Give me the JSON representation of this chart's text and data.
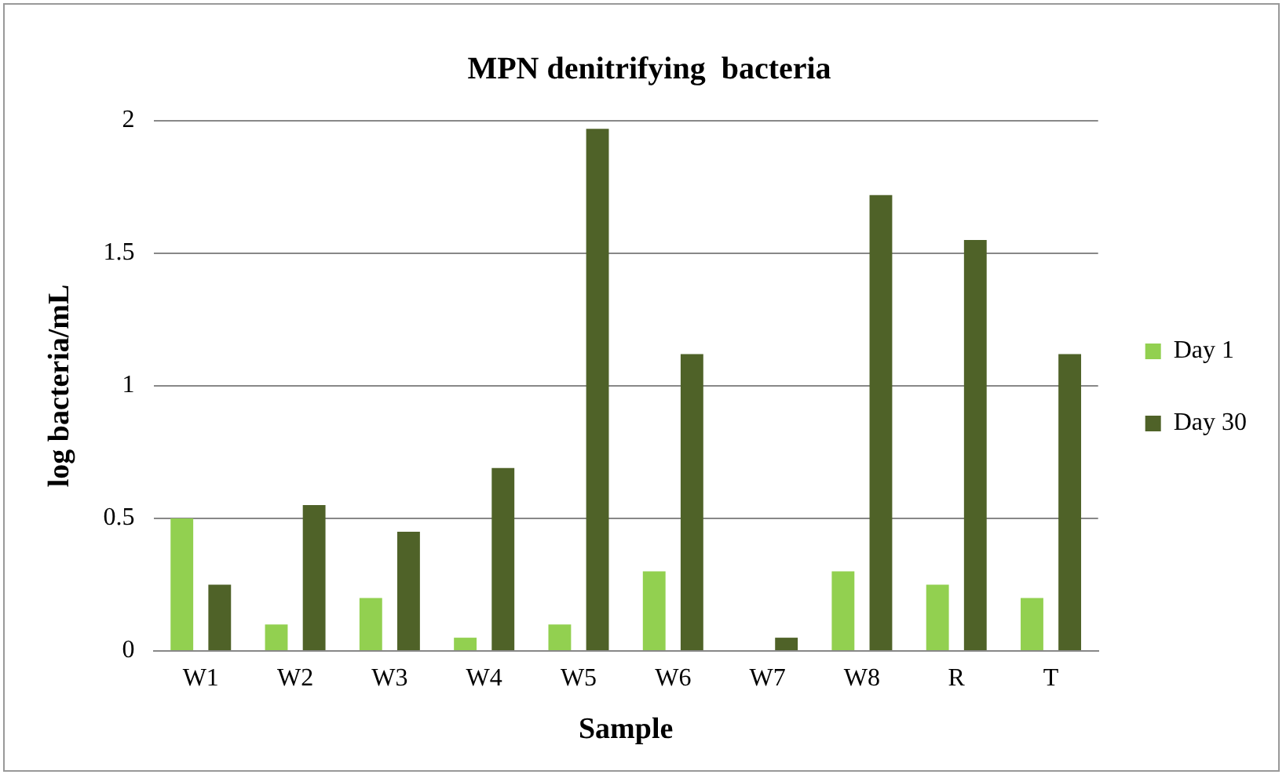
{
  "chart_data": {
    "type": "bar",
    "title": "MPN denitrifying  bacteria",
    "xlabel": "Sample",
    "ylabel": "log bacteria/mL",
    "categories": [
      "W1",
      "W2",
      "W3",
      "W4",
      "W5",
      "W6",
      "W7",
      "W8",
      "R",
      "T"
    ],
    "series": [
      {
        "name": "Day 1",
        "color": "#92d050",
        "values": [
          0.5,
          0.1,
          0.2,
          0.05,
          0.1,
          0.3,
          0,
          0.3,
          0.25,
          0.2
        ]
      },
      {
        "name": "Day 30",
        "color": "#4f6228",
        "values": [
          0.25,
          0.55,
          0.45,
          0.69,
          1.97,
          1.12,
          0.05,
          1.72,
          1.55,
          1.12
        ]
      }
    ],
    "ylim": [
      0,
      2
    ],
    "yticks": [
      0,
      0.5,
      1,
      1.5,
      2
    ],
    "grid": "y",
    "legend": "right"
  }
}
